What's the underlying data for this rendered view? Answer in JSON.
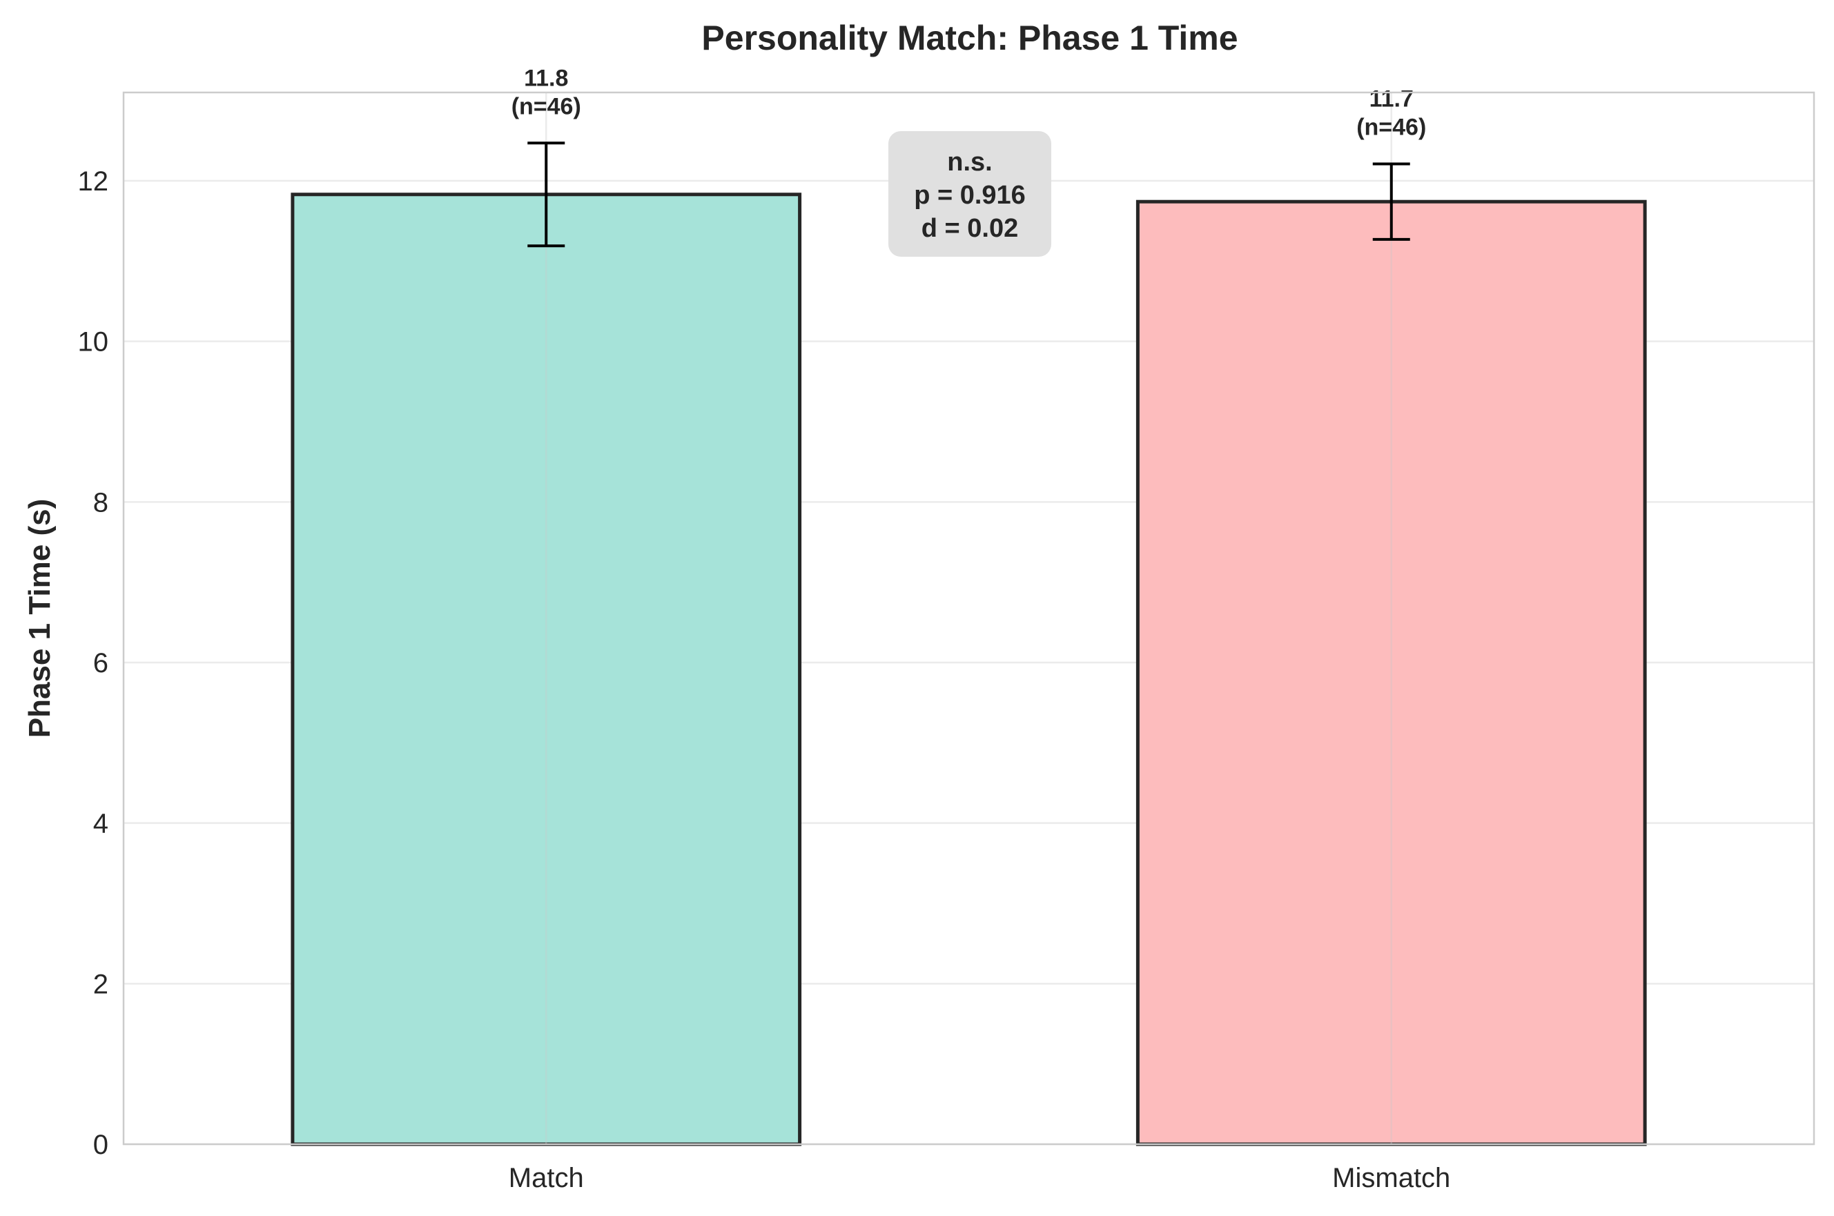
{
  "chart_data": {
    "type": "bar",
    "title": "Personality Match: Phase 1 Time",
    "xlabel": "",
    "ylabel": "Phase 1 Time (s)",
    "categories": [
      "Match",
      "Mismatch"
    ],
    "values": [
      11.83,
      11.74
    ],
    "error": [
      0.64,
      0.47
    ],
    "value_labels": [
      "11.8",
      "11.7"
    ],
    "n_labels": [
      "(n=46)",
      "(n=46)"
    ],
    "colors": [
      "#a6e3d9",
      "#fdbcbd"
    ],
    "edge_color": "#262626",
    "ylim": [
      0,
      13.1
    ],
    "yticks": [
      0,
      2,
      4,
      6,
      8,
      10,
      12
    ],
    "grid": true,
    "stat_annotation": [
      "n.s.",
      "p = 0.916",
      "d = 0.02"
    ]
  }
}
